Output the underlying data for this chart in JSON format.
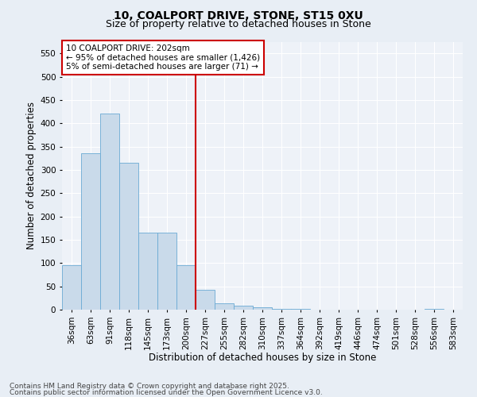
{
  "title1": "10, COALPORT DRIVE, STONE, ST15 0XU",
  "title2": "Size of property relative to detached houses in Stone",
  "xlabel": "Distribution of detached houses by size in Stone",
  "ylabel": "Number of detached properties",
  "categories": [
    "36sqm",
    "63sqm",
    "91sqm",
    "118sqm",
    "145sqm",
    "173sqm",
    "200sqm",
    "227sqm",
    "255sqm",
    "282sqm",
    "310sqm",
    "337sqm",
    "364sqm",
    "392sqm",
    "419sqm",
    "446sqm",
    "474sqm",
    "501sqm",
    "528sqm",
    "556sqm",
    "583sqm"
  ],
  "values": [
    95,
    335,
    420,
    315,
    165,
    165,
    95,
    42,
    14,
    9,
    5,
    2,
    1,
    0,
    0,
    0,
    0,
    0,
    0,
    2,
    0
  ],
  "bar_color": "#c9daea",
  "bar_edge_color": "#6aaad4",
  "vline_color": "#cc0000",
  "annotation_text": "10 COALPORT DRIVE: 202sqm\n← 95% of detached houses are smaller (1,426)\n5% of semi-detached houses are larger (71) →",
  "annotation_box_color": "#ffffff",
  "annotation_box_edge": "#cc0000",
  "ylim": [
    0,
    575
  ],
  "yticks": [
    0,
    50,
    100,
    150,
    200,
    250,
    300,
    350,
    400,
    450,
    500,
    550
  ],
  "footer1": "Contains HM Land Registry data © Crown copyright and database right 2025.",
  "footer2": "Contains public sector information licensed under the Open Government Licence v3.0.",
  "bg_color": "#e8eef5",
  "plot_bg_color": "#eef2f8",
  "grid_color": "#ffffff",
  "title1_fontsize": 10,
  "title2_fontsize": 9,
  "xlabel_fontsize": 8.5,
  "ylabel_fontsize": 8.5,
  "tick_fontsize": 7.5,
  "annotation_fontsize": 7.5,
  "footer_fontsize": 6.5
}
